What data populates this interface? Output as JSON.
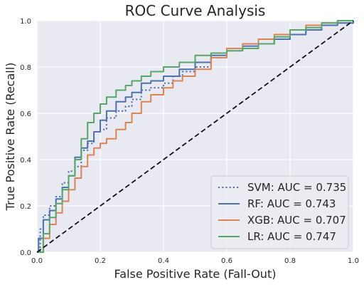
{
  "chart_data": {
    "type": "line",
    "title": "ROC Curve Analysis",
    "xlabel": "False Positive Rate (Fall-Out)",
    "ylabel": "True Positive Rate (Recall)",
    "xlim": [
      0,
      1
    ],
    "ylim": [
      0,
      1
    ],
    "x_ticks": [
      "0.0",
      "0.2",
      "0.4",
      "0.6",
      "0.8",
      "1.0"
    ],
    "y_ticks": [
      "0.0",
      "0.2",
      "0.4",
      "0.6",
      "0.8",
      "1.0"
    ],
    "grid": true,
    "legend_position": "lower-right",
    "colors": {
      "background": "#e9e9f1",
      "grid": "#ffffff",
      "text": "#262626"
    },
    "series": [
      {
        "name": "SVM: AUC = 0.735",
        "color": "#4c72b0",
        "dash": "dotted",
        "x": [
          0,
          0.01,
          0.02,
          0.04,
          0.06,
          0.08,
          0.1,
          0.12,
          0.14,
          0.16,
          0.18,
          0.2,
          0.22,
          0.25,
          0.28,
          0.3,
          0.33,
          0.36,
          0.4,
          0.43,
          0.46,
          0.5,
          0.55,
          0.6,
          0.65,
          0.7,
          0.75,
          0.8,
          0.85,
          0.9,
          0.95,
          1.0
        ],
        "y": [
          0,
          0.1,
          0.16,
          0.2,
          0.24,
          0.3,
          0.35,
          0.37,
          0.44,
          0.47,
          0.52,
          0.53,
          0.58,
          0.61,
          0.63,
          0.66,
          0.7,
          0.71,
          0.73,
          0.76,
          0.78,
          0.8,
          0.84,
          0.87,
          0.88,
          0.9,
          0.92,
          0.94,
          0.96,
          0.98,
          0.99,
          1.0
        ]
      },
      {
        "name": "RF: AUC = 0.743",
        "color": "#4c72b0",
        "dash": "solid",
        "x": [
          0,
          0.005,
          0.02,
          0.04,
          0.06,
          0.08,
          0.1,
          0.12,
          0.14,
          0.16,
          0.18,
          0.2,
          0.22,
          0.25,
          0.28,
          0.3,
          0.33,
          0.36,
          0.4,
          0.45,
          0.5,
          0.55,
          0.6,
          0.65,
          0.7,
          0.75,
          0.8,
          0.85,
          0.9,
          0.95,
          1.0
        ],
        "y": [
          0,
          0.06,
          0.14,
          0.18,
          0.23,
          0.28,
          0.33,
          0.41,
          0.45,
          0.48,
          0.52,
          0.57,
          0.61,
          0.65,
          0.67,
          0.69,
          0.73,
          0.74,
          0.76,
          0.79,
          0.82,
          0.85,
          0.88,
          0.89,
          0.9,
          0.92,
          0.94,
          0.96,
          0.98,
          0.99,
          1.0
        ]
      },
      {
        "name": "XGB: AUC = 0.707",
        "color": "#dd8452",
        "dash": "solid",
        "x": [
          0,
          0.02,
          0.04,
          0.06,
          0.08,
          0.1,
          0.12,
          0.14,
          0.16,
          0.18,
          0.2,
          0.22,
          0.25,
          0.28,
          0.3,
          0.33,
          0.36,
          0.4,
          0.43,
          0.46,
          0.5,
          0.55,
          0.6,
          0.65,
          0.7,
          0.75,
          0.8,
          0.85,
          0.9,
          0.95,
          1.0
        ],
        "y": [
          0,
          0.06,
          0.12,
          0.17,
          0.22,
          0.27,
          0.32,
          0.37,
          0.42,
          0.45,
          0.47,
          0.49,
          0.53,
          0.56,
          0.6,
          0.65,
          0.68,
          0.71,
          0.74,
          0.76,
          0.79,
          0.84,
          0.88,
          0.9,
          0.92,
          0.94,
          0.96,
          0.98,
          0.99,
          1.0,
          1.0
        ]
      },
      {
        "name": "LR: AUC = 0.747",
        "color": "#55a868",
        "dash": "solid",
        "x": [
          0,
          0.02,
          0.04,
          0.06,
          0.08,
          0.1,
          0.12,
          0.14,
          0.16,
          0.18,
          0.2,
          0.22,
          0.25,
          0.28,
          0.3,
          0.33,
          0.36,
          0.4,
          0.45,
          0.5,
          0.55,
          0.6,
          0.65,
          0.7,
          0.75,
          0.8,
          0.85,
          0.9,
          0.95,
          1.0
        ],
        "y": [
          0,
          0.08,
          0.15,
          0.21,
          0.27,
          0.33,
          0.4,
          0.49,
          0.56,
          0.6,
          0.64,
          0.67,
          0.7,
          0.72,
          0.74,
          0.76,
          0.78,
          0.8,
          0.82,
          0.85,
          0.86,
          0.87,
          0.88,
          0.9,
          0.93,
          0.96,
          0.97,
          0.99,
          1.0,
          1.0
        ]
      },
      {
        "name": "",
        "color": "#111111",
        "dash": "dashed",
        "x": [
          0,
          1
        ],
        "y": [
          0,
          1
        ]
      }
    ]
  }
}
